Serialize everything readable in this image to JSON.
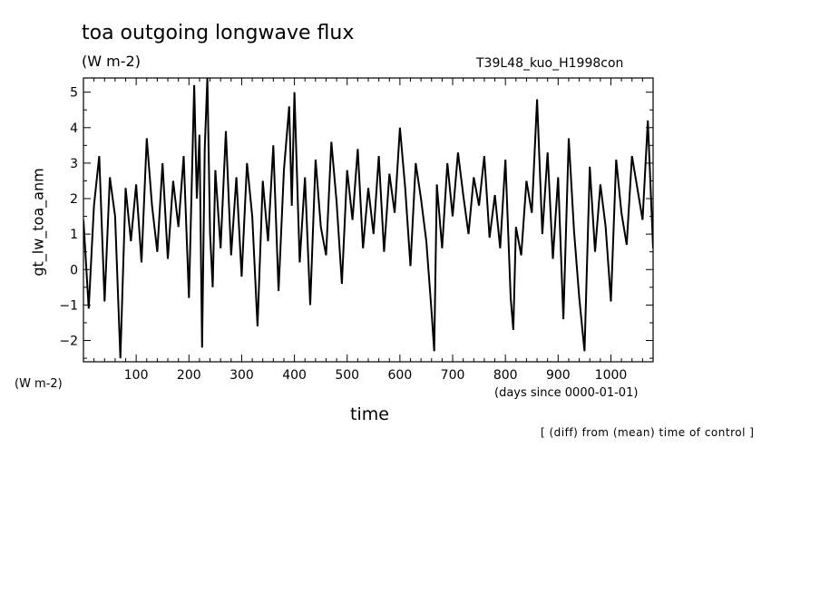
{
  "title": "toa outgoing longwave flux",
  "units_top": "(W m-2)",
  "run_label": "T39L48_kuo_H1998con",
  "units_left": "(W m-2)",
  "note": "[ (diff) from (mean) time of control ]",
  "chart_data": {
    "type": "line",
    "title": "toa outgoing longwave flux",
    "xlabel": "time",
    "x_units": "(days since 0000-01-01)",
    "ylabel": "gt_lw_toa_anm",
    "y_units": "(W m-2)",
    "xlim": [
      0,
      1080
    ],
    "ylim": [
      -2.6,
      5.4
    ],
    "x_ticks": [
      100,
      200,
      300,
      400,
      500,
      600,
      700,
      800,
      900,
      1000
    ],
    "x_tick_labels": [
      "100",
      "200",
      "300",
      "400",
      "500",
      "600",
      "700",
      "800",
      "900",
      "1000"
    ],
    "y_ticks": [
      -2,
      -1,
      0,
      1,
      2,
      3,
      4,
      5
    ],
    "y_tick_labels": [
      "−2",
      "−1",
      "0",
      "1",
      "2",
      "3",
      "4",
      "5"
    ],
    "grid": false,
    "color": "#000000",
    "x": [
      0,
      10,
      20,
      30,
      40,
      50,
      60,
      70,
      80,
      90,
      100,
      110,
      120,
      130,
      140,
      150,
      160,
      170,
      180,
      190,
      200,
      210,
      215,
      220,
      225,
      230,
      235,
      240,
      245,
      250,
      260,
      270,
      280,
      290,
      300,
      310,
      320,
      330,
      340,
      350,
      360,
      370,
      380,
      390,
      395,
      400,
      410,
      420,
      430,
      440,
      450,
      460,
      470,
      480,
      490,
      500,
      510,
      520,
      530,
      540,
      550,
      560,
      570,
      580,
      590,
      600,
      610,
      620,
      630,
      640,
      650,
      660,
      665,
      670,
      680,
      690,
      700,
      710,
      720,
      730,
      740,
      750,
      760,
      770,
      780,
      790,
      800,
      810,
      815,
      820,
      830,
      840,
      850,
      860,
      870,
      880,
      890,
      900,
      910,
      920,
      930,
      940,
      950,
      960,
      970,
      980,
      990,
      1000,
      1010,
      1020,
      1030,
      1040,
      1050,
      1060,
      1070,
      1080
    ],
    "y": [
      1.4,
      -1.1,
      1.8,
      3.2,
      -0.9,
      2.6,
      1.5,
      -2.5,
      2.3,
      0.8,
      2.4,
      0.2,
      3.7,
      1.8,
      0.5,
      3.0,
      0.3,
      2.5,
      1.2,
      3.2,
      -0.8,
      5.2,
      2.0,
      3.8,
      -2.2,
      3.4,
      5.4,
      1.0,
      -0.5,
      2.8,
      0.6,
      3.9,
      0.4,
      2.6,
      -0.2,
      3.0,
      1.5,
      -1.6,
      2.5,
      0.8,
      3.5,
      -0.6,
      2.8,
      4.6,
      1.8,
      5.0,
      0.2,
      2.6,
      -1.0,
      3.1,
      1.2,
      0.4,
      3.6,
      1.9,
      -0.4,
      2.8,
      1.4,
      3.4,
      0.6,
      2.3,
      1.0,
      3.2,
      0.5,
      2.7,
      1.6,
      4.0,
      2.3,
      0.1,
      3.0,
      2.0,
      0.8,
      -1.2,
      -2.3,
      2.4,
      0.6,
      3.0,
      1.5,
      3.3,
      2.1,
      1.0,
      2.6,
      1.8,
      3.2,
      0.9,
      2.1,
      0.6,
      3.1,
      -0.8,
      -1.7,
      1.2,
      0.4,
      2.5,
      1.6,
      4.8,
      1.0,
      3.3,
      0.3,
      2.6,
      -1.4,
      3.7,
      1.1,
      -0.8,
      -2.3,
      2.9,
      0.5,
      2.4,
      1.2,
      -0.9,
      3.1,
      1.6,
      0.7,
      3.2,
      2.3,
      1.4,
      4.2,
      0.6
    ]
  }
}
